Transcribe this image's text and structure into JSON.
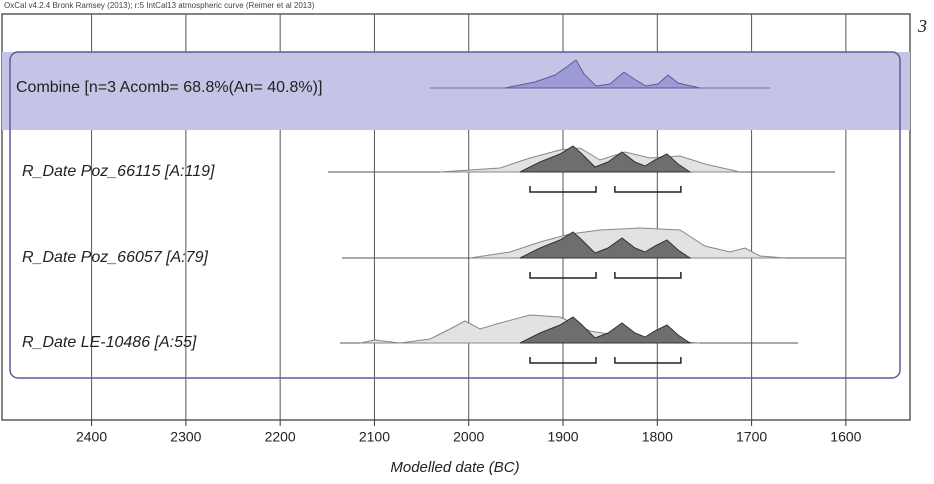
{
  "chart_data": {
    "type": "oxcal",
    "title": "OxCal v4.2.4 Bronk Ramsey (2013); r:5 IntCal13 atmospheric curve (Reimer et al 2013)",
    "panel": "3",
    "x_label": "Modelled date (BC)",
    "xlim": [
      2495,
      1532
    ],
    "xticks": [
      2400,
      2300,
      2200,
      2100,
      2000,
      1900,
      1800,
      1700,
      1600
    ],
    "grid": true,
    "combine_label": "Combine [n=3 Acomb= 68.8%(An= 40.8%)]",
    "rows": [
      {
        "label": "R_Date Poz_66115 [A:119]",
        "ranges": [
          [
            1935,
            1865
          ],
          [
            1845,
            1775
          ]
        ]
      },
      {
        "label": "R_Date Poz_66057 [A:79]",
        "ranges": [
          [
            1935,
            1865
          ],
          [
            1845,
            1775
          ]
        ]
      },
      {
        "label": "R_Date LE-10486 [A:55]",
        "ranges": [
          [
            1935,
            1865
          ],
          [
            1845,
            1775
          ]
        ]
      }
    ]
  }
}
